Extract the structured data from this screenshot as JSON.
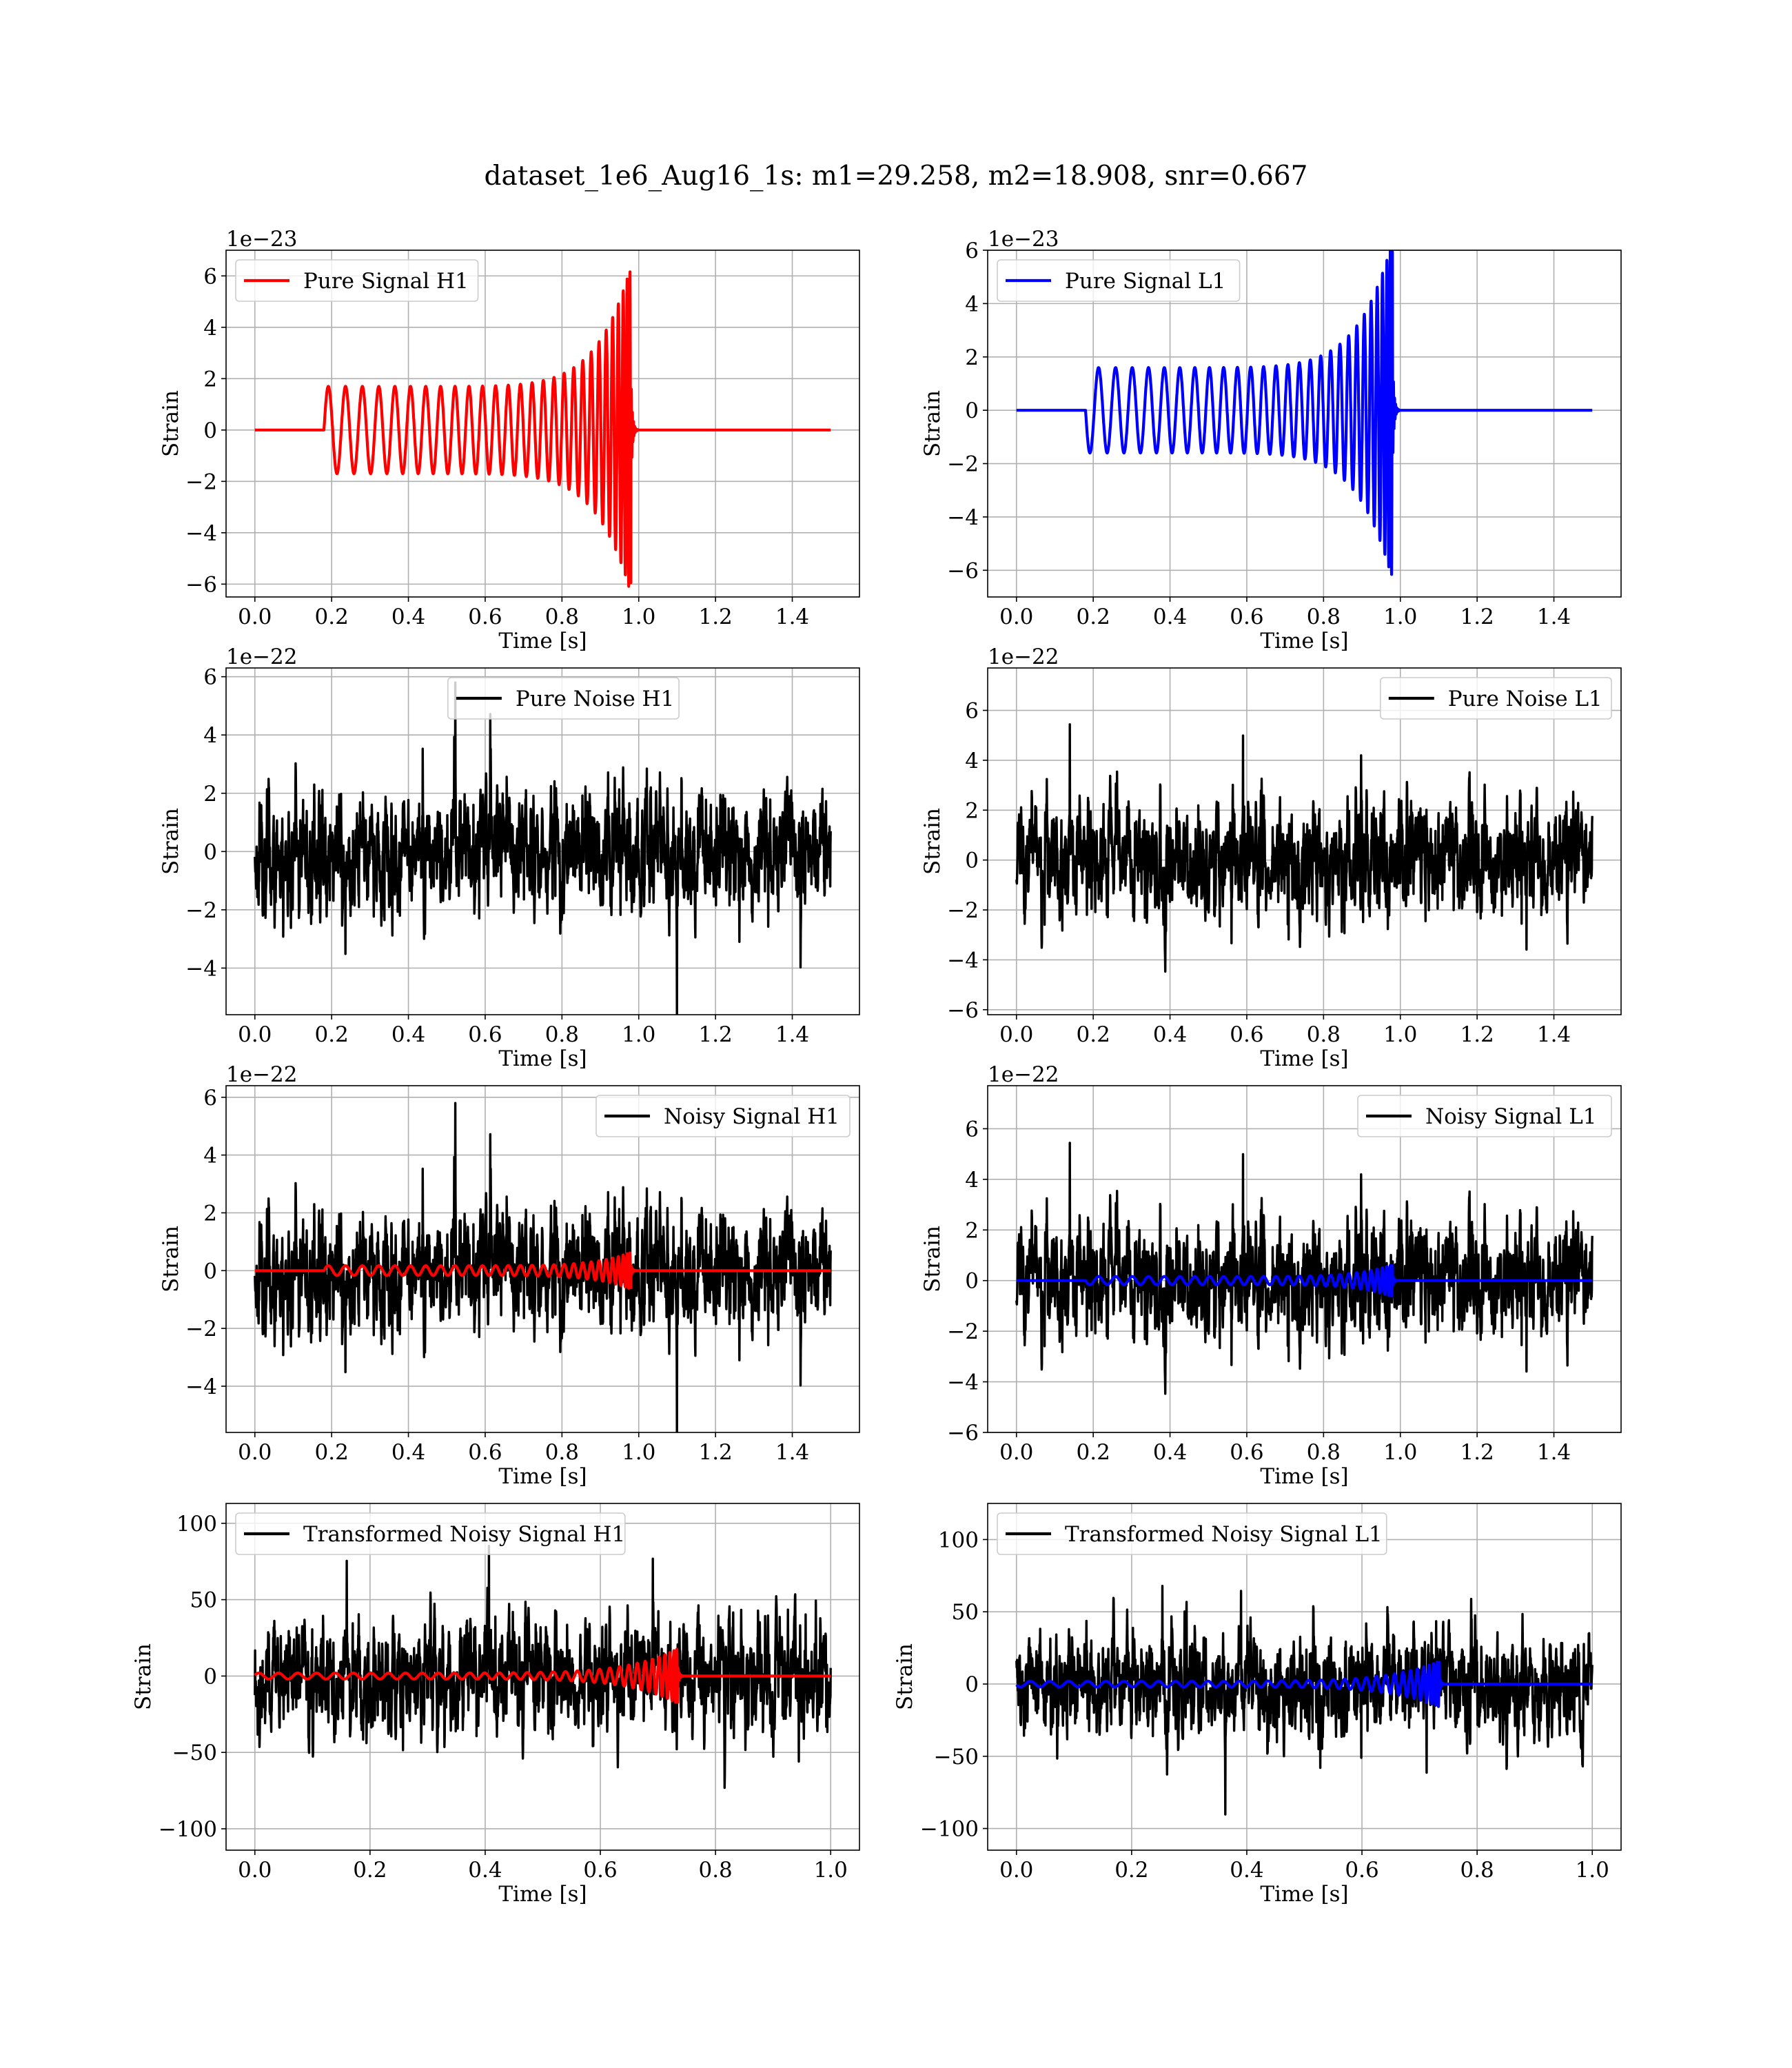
{
  "figure": {
    "title": "dataset_1e6_Aug16_1s: m1=29.258, m2=18.908, snr=0.667"
  },
  "colors": {
    "red": "#ff0000",
    "blue": "#0000ff",
    "black": "#000000"
  },
  "chart_data": [
    {
      "type": "line",
      "id": "pure-signal-h1",
      "xlabel": "Time [s]",
      "ylabel": "Strain",
      "offset_label": "1e−23",
      "xlim": [
        -0.075,
        1.575
      ],
      "ylim": [
        -6.5,
        7.0
      ],
      "xticks": [
        0.0,
        0.2,
        0.4,
        0.6,
        0.8,
        1.0,
        1.2,
        1.4
      ],
      "xtick_labels": [
        "0.0",
        "0.2",
        "0.4",
        "0.6",
        "0.8",
        "1.0",
        "1.2",
        "1.4"
      ],
      "yticks": [
        -6,
        -4,
        -2,
        0,
        2,
        4,
        6
      ],
      "ytick_labels": [
        "−6",
        "−4",
        "−2",
        "0",
        "2",
        "4",
        "6"
      ],
      "legend": {
        "position": "upper-left",
        "entries": [
          {
            "label": "Pure Signal H1",
            "color": "#ff0000"
          }
        ]
      },
      "series": [
        {
          "name": "Pure Signal H1",
          "color": "#ff0000",
          "kind": "chirp",
          "x_range": [
            0.0,
            1.5
          ],
          "onset": 0.18,
          "merger": 0.98,
          "base_amp": 1.7,
          "peak_amp": 6.4,
          "cycles": 28,
          "sign": 1
        }
      ]
    },
    {
      "type": "line",
      "id": "pure-signal-l1",
      "xlabel": "Time [s]",
      "ylabel": "Strain",
      "offset_label": "1e−23",
      "xlim": [
        -0.075,
        1.575
      ],
      "ylim": [
        -7.0,
        6.0
      ],
      "xticks": [
        0.0,
        0.2,
        0.4,
        0.6,
        0.8,
        1.0,
        1.2,
        1.4
      ],
      "xtick_labels": [
        "0.0",
        "0.2",
        "0.4",
        "0.6",
        "0.8",
        "1.0",
        "1.2",
        "1.4"
      ],
      "yticks": [
        -6,
        -4,
        -2,
        0,
        2,
        4,
        6
      ],
      "ytick_labels": [
        "−6",
        "−4",
        "−2",
        "0",
        "2",
        "4",
        "6"
      ],
      "legend": {
        "position": "upper-left",
        "entries": [
          {
            "label": "Pure Signal L1",
            "color": "#0000ff"
          }
        ]
      },
      "series": [
        {
          "name": "Pure Signal L1",
          "color": "#0000ff",
          "kind": "chirp",
          "x_range": [
            0.0,
            1.5
          ],
          "onset": 0.18,
          "merger": 0.98,
          "base_amp": 1.6,
          "peak_amp": 6.4,
          "cycles": 28,
          "sign": -1
        }
      ]
    },
    {
      "type": "line",
      "id": "pure-noise-h1",
      "xlabel": "Time [s]",
      "ylabel": "Strain",
      "offset_label": "1e−22",
      "xlim": [
        -0.075,
        1.575
      ],
      "ylim": [
        -5.6,
        6.3
      ],
      "xticks": [
        0.0,
        0.2,
        0.4,
        0.6,
        0.8,
        1.0,
        1.2,
        1.4
      ],
      "xtick_labels": [
        "0.0",
        "0.2",
        "0.4",
        "0.6",
        "0.8",
        "1.0",
        "1.2",
        "1.4"
      ],
      "yticks": [
        -4,
        -2,
        0,
        2,
        4,
        6
      ],
      "ytick_labels": [
        "−4",
        "−2",
        "0",
        "2",
        "4",
        "6"
      ],
      "legend": {
        "position": "upper-center",
        "entries": [
          {
            "label": "Pure Noise H1",
            "color": "#000000"
          }
        ]
      },
      "series": [
        {
          "name": "Pure Noise H1",
          "color": "#000000",
          "kind": "noise",
          "x_range": [
            0.0,
            1.5
          ],
          "scale": 1.55,
          "max_abs": 5.8,
          "seed": 11
        }
      ]
    },
    {
      "type": "line",
      "id": "pure-noise-l1",
      "xlabel": "Time [s]",
      "ylabel": "Strain",
      "offset_label": "1e−22",
      "xlim": [
        -0.075,
        1.575
      ],
      "ylim": [
        -6.2,
        7.7
      ],
      "xticks": [
        0.0,
        0.2,
        0.4,
        0.6,
        0.8,
        1.0,
        1.2,
        1.4
      ],
      "xtick_labels": [
        "0.0",
        "0.2",
        "0.4",
        "0.6",
        "0.8",
        "1.0",
        "1.2",
        "1.4"
      ],
      "yticks": [
        -6,
        -4,
        -2,
        0,
        2,
        4,
        6
      ],
      "ytick_labels": [
        "−6",
        "−4",
        "−2",
        "0",
        "2",
        "4",
        "6"
      ],
      "legend": {
        "position": "upper-right",
        "entries": [
          {
            "label": "Pure Noise L1",
            "color": "#000000"
          }
        ]
      },
      "series": [
        {
          "name": "Pure Noise L1",
          "color": "#000000",
          "kind": "noise",
          "x_range": [
            0.0,
            1.5
          ],
          "scale": 1.7,
          "max_abs": 7.1,
          "seed": 23
        }
      ]
    },
    {
      "type": "line",
      "id": "noisy-signal-h1",
      "xlabel": "Time [s]",
      "ylabel": "Strain",
      "offset_label": "1e−22",
      "xlim": [
        -0.075,
        1.575
      ],
      "ylim": [
        -5.6,
        6.4
      ],
      "xticks": [
        0.0,
        0.2,
        0.4,
        0.6,
        0.8,
        1.0,
        1.2,
        1.4
      ],
      "xtick_labels": [
        "0.0",
        "0.2",
        "0.4",
        "0.6",
        "0.8",
        "1.0",
        "1.2",
        "1.4"
      ],
      "yticks": [
        -4,
        -2,
        0,
        2,
        4,
        6
      ],
      "ytick_labels": [
        "−4",
        "−2",
        "0",
        "2",
        "4",
        "6"
      ],
      "legend": {
        "position": "upper-right",
        "entries": [
          {
            "label": "Noisy Signal H1",
            "color": "#000000"
          }
        ]
      },
      "series": [
        {
          "name": "Noisy Signal H1",
          "color": "#000000",
          "kind": "noise",
          "x_range": [
            0.0,
            1.5
          ],
          "scale": 1.55,
          "max_abs": 5.8,
          "seed": 11
        },
        {
          "name": "Pure Signal H1",
          "color": "#ff0000",
          "kind": "chirp",
          "x_range": [
            0.0,
            1.5
          ],
          "onset": 0.18,
          "merger": 0.98,
          "base_amp": 0.17,
          "peak_amp": 0.64,
          "cycles": 28,
          "sign": 1
        }
      ]
    },
    {
      "type": "line",
      "id": "noisy-signal-l1",
      "xlabel": "Time [s]",
      "ylabel": "Strain",
      "offset_label": "1e−22",
      "xlim": [
        -0.075,
        1.575
      ],
      "ylim": [
        -6.0,
        7.7
      ],
      "xticks": [
        0.0,
        0.2,
        0.4,
        0.6,
        0.8,
        1.0,
        1.2,
        1.4
      ],
      "xtick_labels": [
        "0.0",
        "0.2",
        "0.4",
        "0.6",
        "0.8",
        "1.0",
        "1.2",
        "1.4"
      ],
      "yticks": [
        -6,
        -4,
        -2,
        0,
        2,
        4,
        6
      ],
      "ytick_labels": [
        "−6",
        "−4",
        "−2",
        "0",
        "2",
        "4",
        "6"
      ],
      "legend": {
        "position": "upper-right",
        "entries": [
          {
            "label": "Noisy Signal L1",
            "color": "#000000"
          }
        ]
      },
      "series": [
        {
          "name": "Noisy Signal L1",
          "color": "#000000",
          "kind": "noise",
          "x_range": [
            0.0,
            1.5
          ],
          "scale": 1.7,
          "max_abs": 7.1,
          "seed": 23
        },
        {
          "name": "Pure Signal L1",
          "color": "#0000ff",
          "kind": "chirp",
          "x_range": [
            0.0,
            1.5
          ],
          "onset": 0.18,
          "merger": 0.98,
          "base_amp": 0.16,
          "peak_amp": 0.64,
          "cycles": 28,
          "sign": -1
        }
      ]
    },
    {
      "type": "line",
      "id": "transformed-noisy-signal-h1",
      "xlabel": "Time [s]",
      "ylabel": "Strain",
      "offset_label": "",
      "xlim": [
        -0.05,
        1.05
      ],
      "ylim": [
        -114,
        113
      ],
      "xticks": [
        0.0,
        0.2,
        0.4,
        0.6,
        0.8,
        1.0
      ],
      "xtick_labels": [
        "0.0",
        "0.2",
        "0.4",
        "0.6",
        "0.8",
        "1.0"
      ],
      "yticks": [
        -100,
        -50,
        0,
        50,
        100
      ],
      "ytick_labels": [
        "−100",
        "−50",
        "0",
        "50",
        "100"
      ],
      "legend": {
        "position": "upper-left",
        "entries": [
          {
            "label": "Transformed Noisy Signal H1",
            "color": "#000000"
          }
        ]
      },
      "series": [
        {
          "name": "Transformed Noisy Signal H1",
          "color": "#000000",
          "kind": "noise",
          "x_range": [
            0.0,
            1.0
          ],
          "scale": 27,
          "max_abs": 110,
          "seed": 37
        },
        {
          "name": "Transformed Pure Signal H1",
          "color": "#ff0000",
          "kind": "chirp",
          "x_range": [
            0.0,
            1.0
          ],
          "onset": 0.0,
          "merger": 0.735,
          "base_amp": 2,
          "peak_amp": 18,
          "cycles": 34,
          "sign": 1
        }
      ]
    },
    {
      "type": "line",
      "id": "transformed-noisy-signal-l1",
      "xlabel": "Time [s]",
      "ylabel": "Strain",
      "offset_label": "",
      "xlim": [
        -0.05,
        1.05
      ],
      "ylim": [
        -115,
        125
      ],
      "xticks": [
        0.0,
        0.2,
        0.4,
        0.6,
        0.8,
        1.0
      ],
      "xtick_labels": [
        "0.0",
        "0.2",
        "0.4",
        "0.6",
        "0.8",
        "1.0"
      ],
      "yticks": [
        -100,
        -50,
        0,
        50,
        100
      ],
      "ytick_labels": [
        "−100",
        "−50",
        "0",
        "50",
        "100"
      ],
      "legend": {
        "position": "upper-left",
        "entries": [
          {
            "label": "Transformed Noisy Signal L1",
            "color": "#000000"
          }
        ]
      },
      "series": [
        {
          "name": "Transformed Noisy Signal L1",
          "color": "#000000",
          "kind": "noise",
          "x_range": [
            0.0,
            1.0
          ],
          "scale": 27,
          "max_abs": 120,
          "seed": 53
        },
        {
          "name": "Transformed Pure Signal L1",
          "color": "#0000ff",
          "kind": "chirp",
          "x_range": [
            0.0,
            1.0
          ],
          "onset": 0.0,
          "merger": 0.735,
          "base_amp": 2,
          "peak_amp": 16,
          "cycles": 34,
          "sign": -1
        }
      ]
    }
  ]
}
